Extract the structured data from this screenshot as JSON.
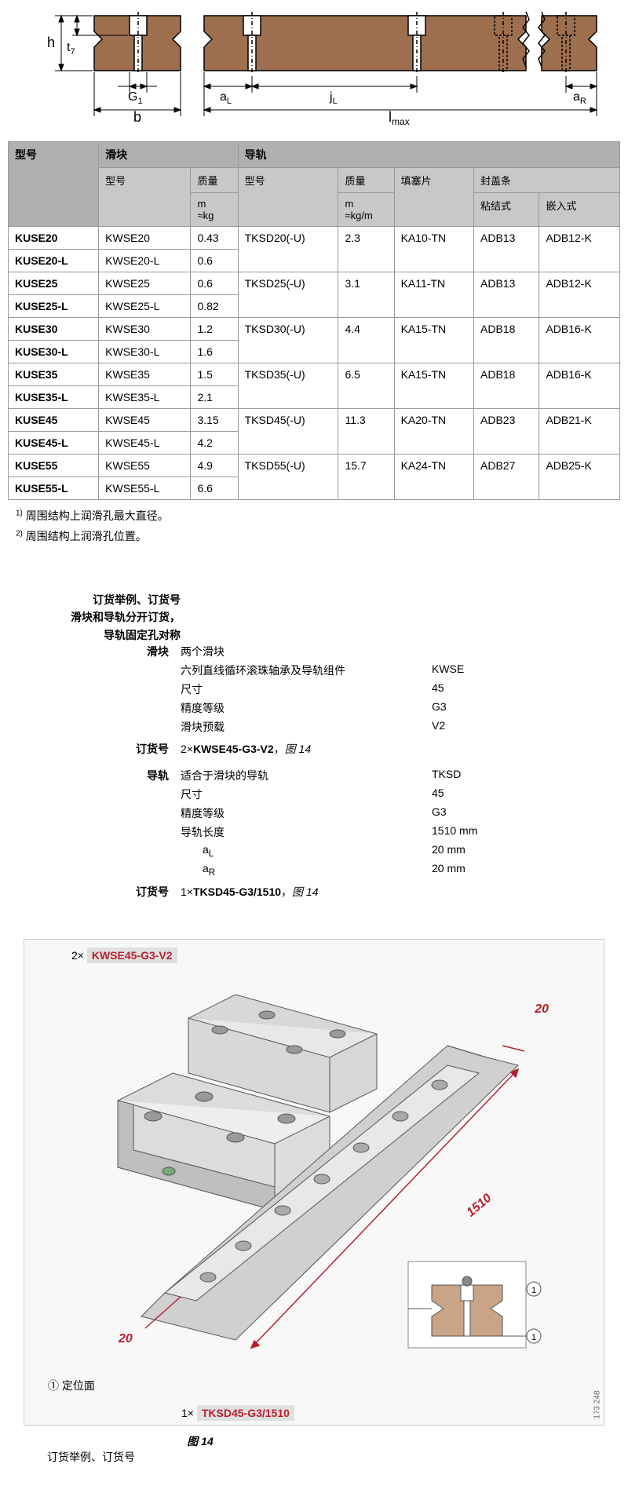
{
  "diagram": {
    "labels": {
      "h": "h",
      "t7": "t₇",
      "G1": "G₁",
      "b": "b",
      "aL": "a",
      "aL_sub": "L",
      "jL": "j",
      "jL_sub": "L",
      "aR": "a",
      "aR_sub": "R",
      "lmax": "l",
      "lmax_sub": "max"
    },
    "fill": "#9d6f4e",
    "line": "#000"
  },
  "table": {
    "headers": {
      "model": "型号",
      "carriage": "滑块",
      "guiderail": "导轨",
      "col_model": "型号",
      "col_mass": "质量",
      "col_m": "m",
      "col_kg": "≈kg",
      "col_kgm": "≈kg/m",
      "col_plug": "填塞片",
      "col_strip": "封盖条",
      "col_adhesive": "粘结式",
      "col_clip": "嵌入式"
    },
    "rows": [
      {
        "m": "KUSE20",
        "cm": "KWSE20",
        "ckg": "0.43",
        "rm": "TKSD20(-U)",
        "rkg": "2.3",
        "plug": "KA10-TN",
        "adh": "ADB13",
        "clip": "ADB12-K",
        "rowspan": 2
      },
      {
        "m": "KUSE20-L",
        "cm": "KWSE20-L",
        "ckg": "0.6"
      },
      {
        "m": "KUSE25",
        "cm": "KWSE25",
        "ckg": "0.6",
        "rm": "TKSD25(-U)",
        "rkg": "3.1",
        "plug": "KA11-TN",
        "adh": "ADB13",
        "clip": "ADB12-K",
        "rowspan": 2
      },
      {
        "m": "KUSE25-L",
        "cm": "KWSE25-L",
        "ckg": "0.82"
      },
      {
        "m": "KUSE30",
        "cm": "KWSE30",
        "ckg": "1.2",
        "rm": "TKSD30(-U)",
        "rkg": "4.4",
        "plug": "KA15-TN",
        "adh": "ADB18",
        "clip": "ADB16-K",
        "rowspan": 2
      },
      {
        "m": "KUSE30-L",
        "cm": "KWSE30-L",
        "ckg": "1.6"
      },
      {
        "m": "KUSE35",
        "cm": "KWSE35",
        "ckg": "1.5",
        "rm": "TKSD35(-U)",
        "rkg": "6.5",
        "plug": "KA15-TN",
        "adh": "ADB18",
        "clip": "ADB16-K",
        "rowspan": 2
      },
      {
        "m": "KUSE35-L",
        "cm": "KWSE35-L",
        "ckg": "2.1"
      },
      {
        "m": "KUSE45",
        "cm": "KWSE45",
        "ckg": "3.15",
        "rm": "TKSD45(-U)",
        "rkg": "11.3",
        "plug": "KA20-TN",
        "adh": "ADB23",
        "clip": "ADB21-K",
        "rowspan": 2
      },
      {
        "m": "KUSE45-L",
        "cm": "KWSE45-L",
        "ckg": "4.2"
      },
      {
        "m": "KUSE55",
        "cm": "KWSE55",
        "ckg": "4.9",
        "rm": "TKSD55(-U)",
        "rkg": "15.7",
        "plug": "KA24-TN",
        "adh": "ADB27",
        "clip": "ADB25-K",
        "rowspan": 2
      },
      {
        "m": "KUSE55-L",
        "cm": "KWSE55-L",
        "ckg": "6.6"
      }
    ]
  },
  "footnotes": {
    "n1": "周围结构上润滑孔最大直径。",
    "n2": "周围结构上润滑孔位置。"
  },
  "ordering": {
    "title1": "订货举例、订货号",
    "title2": "滑块和导轨分开订货，",
    "title3": "导轨固定孔对称",
    "carriage_label": "滑块",
    "carriage": {
      "l1": "两个滑块",
      "l2": "六列直线循环滚珠轴承及导轨组件",
      "v2": "KWSE",
      "l3": "尺寸",
      "v3": "45",
      "l4": "精度等级",
      "v4": "G3",
      "l5": "滑块预载",
      "v5": "V2"
    },
    "order_no_label": "订货号",
    "carriage_order": "2×KWSE45-G3-V2",
    "fig_ref": "，图 14",
    "rail_label": "导轨",
    "rail": {
      "l1": "适合于滑块的导轨",
      "v1": "TKSD",
      "l2": "尺寸",
      "v2": "45",
      "l3": "精度等级",
      "v3": "G3",
      "l4": "导轨长度",
      "v4": "1510 mm",
      "l5": "aL",
      "v5": "20 mm",
      "l6": "aR",
      "v6": "20 mm"
    },
    "rail_order": "1×TKSD45-G3/1510"
  },
  "illustration": {
    "label_top_prefix": "2×",
    "label_top": "KWSE45-G3-V2",
    "dim_20a": "20",
    "dim_1510": "1510",
    "dim_20b": "20",
    "locating": "① 定位面",
    "circle1": "1",
    "label_bot_prefix": "1×",
    "label_bot": "TKSD45-G3/1510",
    "fignum": "图 14",
    "caption": "订货举例、订货号",
    "side_code": "173 248"
  }
}
